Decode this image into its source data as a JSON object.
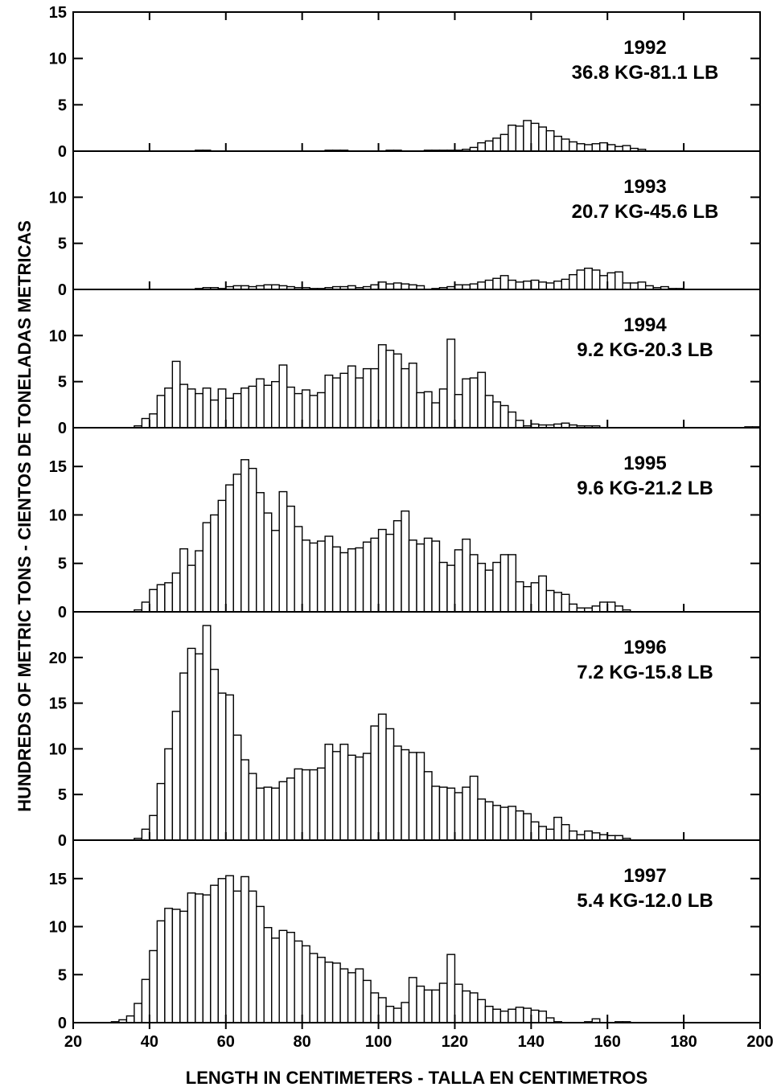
{
  "chart_data": {
    "type": "bar",
    "xlabel": "LENGTH IN CENTIMETERS - TALLA EN CENTIMETROS",
    "ylabel": "HUNDREDS OF METRIC TONS - CIENTOS DE TONELADAS METRICAS",
    "xlim": [
      20,
      200
    ],
    "x_ticks": [
      20,
      40,
      60,
      80,
      100,
      120,
      140,
      160,
      180,
      200
    ],
    "bin_width_cm": 2,
    "bin_start_cm": 30,
    "bin_labels": [
      30,
      32,
      34,
      36,
      38,
      40,
      42,
      44,
      46,
      48,
      50,
      52,
      54,
      56,
      58,
      60,
      62,
      64,
      66,
      68,
      70,
      72,
      74,
      76,
      78,
      80,
      82,
      84,
      86,
      88,
      90,
      92,
      94,
      96,
      98,
      100,
      102,
      104,
      106,
      108,
      110,
      112,
      114,
      116,
      118,
      120,
      122,
      124,
      126,
      128,
      130,
      132,
      134,
      136,
      138,
      140,
      142,
      144,
      146,
      148,
      150,
      152,
      154,
      156,
      158,
      160,
      162,
      164,
      166,
      168,
      170,
      172,
      174,
      176,
      178,
      180,
      182,
      184,
      186,
      188,
      190,
      192,
      194,
      196,
      198
    ],
    "series": [
      {
        "name": "1992",
        "label_line1": "1992",
        "label_line2": "36.8 KG-81.1 LB",
        "ylim": [
          0,
          15
        ],
        "y_ticks": [
          0,
          5,
          10,
          15
        ],
        "values": [
          0,
          0,
          0,
          0,
          0,
          0,
          0,
          0,
          0,
          0,
          0,
          0.1,
          0.1,
          0,
          0,
          0,
          0,
          0,
          0,
          0,
          0,
          0,
          0,
          0,
          0,
          0,
          0,
          0,
          0.1,
          0.1,
          0.1,
          0,
          0,
          0,
          0,
          0,
          0.1,
          0.1,
          0,
          0,
          0,
          0.1,
          0.1,
          0.1,
          0.1,
          0.1,
          0.2,
          0.4,
          0.9,
          1.1,
          1.4,
          1.8,
          2.8,
          2.7,
          3.3,
          3.0,
          2.6,
          2.2,
          1.6,
          1.3,
          1.0,
          0.8,
          0.7,
          0.8,
          0.9,
          0.7,
          0.5,
          0.6,
          0.3,
          0.2,
          0,
          0,
          0,
          0,
          0,
          0,
          0,
          0,
          0,
          0,
          0,
          0,
          0,
          0,
          0
        ]
      },
      {
        "name": "1993",
        "label_line1": "1993",
        "label_line2": "20.7 KG-45.6 LB",
        "ylim": [
          0,
          15
        ],
        "y_ticks": [
          0,
          5,
          10
        ],
        "values": [
          0,
          0,
          0,
          0,
          0,
          0,
          0,
          0,
          0,
          0,
          0,
          0.1,
          0.2,
          0.2,
          0.1,
          0.3,
          0.4,
          0.4,
          0.3,
          0.4,
          0.5,
          0.5,
          0.4,
          0.3,
          0.2,
          0.2,
          0.1,
          0.1,
          0.2,
          0.3,
          0.3,
          0.4,
          0.2,
          0.3,
          0.5,
          0.8,
          0.6,
          0.7,
          0.6,
          0.5,
          0.4,
          0,
          0.1,
          0.2,
          0.3,
          0.5,
          0.5,
          0.6,
          0.8,
          1.0,
          1.2,
          1.5,
          1.0,
          0.8,
          0.9,
          1.0,
          0.8,
          0.7,
          0.9,
          1.1,
          1.6,
          2.1,
          2.3,
          2.1,
          1.5,
          1.8,
          1.9,
          0.7,
          0.7,
          0.8,
          0.4,
          0.2,
          0.3,
          0.1,
          0.1,
          0,
          0,
          0,
          0,
          0,
          0,
          0,
          0,
          0,
          0
        ]
      },
      {
        "name": "1994",
        "label_line1": "1994",
        "label_line2": "9.2 KG-20.3 LB",
        "ylim": [
          0,
          15
        ],
        "y_ticks": [
          0,
          5,
          10
        ],
        "values": [
          0,
          0,
          0,
          0.2,
          1.0,
          1.5,
          3.5,
          4.3,
          7.2,
          4.7,
          4.2,
          3.7,
          4.3,
          3.0,
          4.2,
          3.2,
          3.7,
          4.3,
          4.5,
          5.3,
          4.6,
          5.0,
          6.8,
          4.4,
          3.7,
          4.1,
          3.5,
          3.8,
          5.7,
          5.4,
          5.9,
          6.7,
          5.4,
          6.4,
          6.4,
          9.0,
          8.4,
          8.0,
          6.4,
          7.0,
          3.8,
          3.9,
          2.7,
          4.2,
          9.6,
          3.6,
          5.3,
          5.4,
          6.0,
          3.5,
          2.8,
          2.4,
          1.7,
          0.8,
          0.2,
          0.4,
          0.3,
          0.3,
          0.4,
          0.5,
          0.3,
          0.2,
          0.2,
          0.2,
          0,
          0,
          0,
          0,
          0,
          0,
          0,
          0,
          0,
          0,
          0,
          0,
          0,
          0,
          0,
          0,
          0,
          0,
          0,
          0.1,
          0.1
        ]
      },
      {
        "name": "1995",
        "label_line1": "1995",
        "label_line2": "9.6 KG-21.2 LB",
        "ylim": [
          0,
          19
        ],
        "y_ticks": [
          0,
          5,
          10,
          15
        ],
        "values": [
          0,
          0,
          0,
          0.2,
          1.0,
          2.3,
          2.8,
          3.0,
          4.0,
          6.5,
          4.8,
          6.3,
          9.2,
          10.0,
          11.5,
          13.1,
          14.2,
          15.7,
          14.8,
          12.3,
          10.2,
          8.4,
          12.4,
          10.9,
          8.8,
          7.4,
          7.1,
          7.3,
          7.8,
          6.7,
          6.1,
          6.5,
          6.6,
          7.2,
          7.6,
          8.5,
          8.0,
          9.4,
          10.4,
          7.4,
          7.0,
          7.6,
          7.3,
          5.1,
          4.8,
          6.4,
          7.5,
          5.9,
          5.0,
          4.3,
          5.1,
          5.9,
          5.9,
          3.1,
          2.6,
          3.0,
          3.7,
          2.2,
          2.0,
          1.8,
          0.8,
          0.4,
          0.4,
          0.6,
          1.0,
          1.0,
          0.6,
          0.2,
          0,
          0,
          0,
          0,
          0,
          0,
          0,
          0,
          0,
          0,
          0,
          0,
          0,
          0,
          0,
          0,
          0
        ]
      },
      {
        "name": "1996",
        "label_line1": "1996",
        "label_line2": "7.2 KG-15.8 LB",
        "ylim": [
          0,
          25
        ],
        "y_ticks": [
          0,
          5,
          10,
          15,
          20
        ],
        "values": [
          0,
          0,
          0,
          0.2,
          1.2,
          2.7,
          6.2,
          10.0,
          14.1,
          18.3,
          21.0,
          20.4,
          23.5,
          18.7,
          16.1,
          15.9,
          11.5,
          8.8,
          7.3,
          5.7,
          5.8,
          5.7,
          6.4,
          6.8,
          7.8,
          7.7,
          7.7,
          7.9,
          10.5,
          9.7,
          10.5,
          9.3,
          9.1,
          9.5,
          12.5,
          13.8,
          12.2,
          10.3,
          9.9,
          9.6,
          9.6,
          7.5,
          5.9,
          5.8,
          5.7,
          5.2,
          5.8,
          7.0,
          4.5,
          4.2,
          3.8,
          3.6,
          3.7,
          3.2,
          2.9,
          2.0,
          1.5,
          1.2,
          2.5,
          1.7,
          1.0,
          0.6,
          1.0,
          0.8,
          0.6,
          0.5,
          0.5,
          0.2,
          0,
          0,
          0,
          0,
          0,
          0,
          0,
          0,
          0,
          0,
          0,
          0,
          0,
          0,
          0,
          0,
          0
        ]
      },
      {
        "name": "1997",
        "label_line1": "1997",
        "label_line2": "5.4 KG-12.0 LB",
        "ylim": [
          0,
          19
        ],
        "y_ticks": [
          0,
          5,
          10,
          15
        ],
        "values": [
          0.1,
          0.3,
          0.7,
          2.0,
          4.5,
          7.5,
          10.6,
          11.9,
          11.8,
          11.6,
          13.5,
          13.4,
          13.3,
          14.3,
          15.0,
          15.3,
          13.7,
          15.2,
          13.7,
          12.1,
          9.9,
          8.8,
          9.6,
          9.4,
          8.5,
          8.0,
          7.2,
          6.8,
          6.3,
          6.2,
          5.6,
          5.2,
          5.6,
          4.4,
          3.1,
          2.6,
          1.7,
          1.5,
          2.1,
          4.7,
          3.8,
          3.4,
          3.4,
          4.1,
          7.1,
          4.0,
          3.3,
          3.1,
          2.4,
          1.7,
          1.4,
          1.2,
          1.4,
          1.6,
          1.5,
          1.3,
          1.2,
          0.5,
          0.1,
          0,
          0,
          0,
          0.1,
          0.4,
          0,
          0,
          0.1,
          0.1,
          0,
          0,
          0,
          0,
          0,
          0,
          0,
          0,
          0,
          0,
          0,
          0,
          0,
          0,
          0,
          0,
          0
        ]
      }
    ]
  }
}
